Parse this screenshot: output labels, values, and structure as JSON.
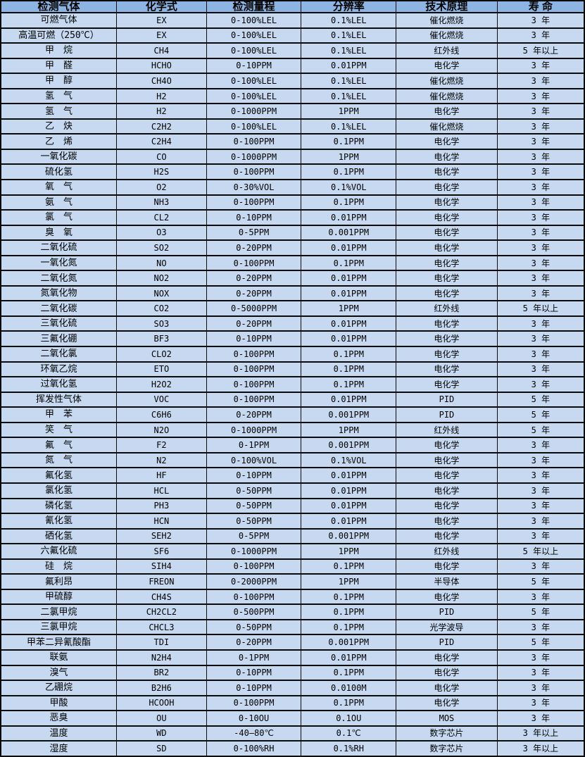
{
  "table": {
    "title": "gas detector sensor specification table",
    "columns": [
      "检测气体",
      "化学式",
      "检测量程",
      "分辨率",
      "技术原理",
      "寿 命"
    ],
    "rows": [
      [
        "可燃气体",
        "EX",
        "0-100%LEL",
        "0.1%LEL",
        "催化燃烧",
        "3 年"
      ],
      [
        "高温可燃（250℃）",
        "EX",
        "0-100%LEL",
        "0.1%LEL",
        "催化燃烧",
        "3 年"
      ],
      [
        "甲　烷",
        "CH4",
        "0-100%LEL",
        "0.1%LEL",
        "红外线",
        "5 年以上"
      ],
      [
        "甲　醛",
        "HCHO",
        "0-10PPM",
        "0.01PPM",
        "电化学",
        "3 年"
      ],
      [
        "甲　醇",
        "CH4O",
        "0-100%LEL",
        "0.1%LEL",
        "催化燃烧",
        "3 年"
      ],
      [
        "氢　气",
        "H2",
        "0-100%LEL",
        "0.1%LEL",
        "催化燃烧",
        "3 年"
      ],
      [
        "氢　气",
        "H2",
        "0-1000PPM",
        "1PPM",
        "电化学",
        "3 年"
      ],
      [
        "乙　炔",
        "C2H2",
        "0-100%LEL",
        "0.1%LEL",
        "催化燃烧",
        "3 年"
      ],
      [
        "乙　烯",
        "C2H4",
        "0-100PPM",
        "0.1PPM",
        "电化学",
        "3 年"
      ],
      [
        "一氧化碳",
        "CO",
        "0-1000PPM",
        "1PPM",
        "电化学",
        "3 年"
      ],
      [
        "硫化氢",
        "H2S",
        "0-100PPM",
        "0.1PPM",
        "电化学",
        "3 年"
      ],
      [
        "氧　气",
        "O2",
        "0-30%VOL",
        "0.1%VOL",
        "电化学",
        "3 年"
      ],
      [
        "氨　气",
        "NH3",
        "0-100PPM",
        "0.1PPM",
        "电化学",
        "3 年"
      ],
      [
        "氯　气",
        "CL2",
        "0-10PPM",
        "0.01PPM",
        "电化学",
        "3 年"
      ],
      [
        "臭　氧",
        "O3",
        "0-5PPM",
        "0.001PPM",
        "电化学",
        "3 年"
      ],
      [
        "二氧化硫",
        "SO2",
        "0-20PPM",
        "0.01PPM",
        "电化学",
        "3 年"
      ],
      [
        "一氧化氮",
        "NO",
        "0-100PPM",
        "0.1PPM",
        "电化学",
        "3 年"
      ],
      [
        "二氧化氮",
        "NO2",
        "0-20PPM",
        "0.01PPM",
        "电化学",
        "3 年"
      ],
      [
        "氮氧化物",
        "NOX",
        "0-20PPM",
        "0.01PPM",
        "电化学",
        "3 年"
      ],
      [
        "二氧化碳",
        "CO2",
        "0-5000PPM",
        "1PPM",
        "红外线",
        "5 年以上"
      ],
      [
        "三氧化硫",
        "SO3",
        "0-20PPM",
        "0.01PPM",
        "电化学",
        "3 年"
      ],
      [
        "三氟化硼",
        "BF3",
        "0-10PPM",
        "0.01PPM",
        "电化学",
        "3 年"
      ],
      [
        "二氧化氯",
        "CLO2",
        "0-100PPM",
        "0.1PPM",
        "电化学",
        "3 年"
      ],
      [
        "环氧乙烷",
        "ETO",
        "0-100PPM",
        "0.1PPM",
        "电化学",
        "3 年"
      ],
      [
        "过氧化氢",
        "H2O2",
        "0-100PPM",
        "0.1PPM",
        "电化学",
        "3 年"
      ],
      [
        "挥发性气体",
        "VOC",
        "0-100PPM",
        "0.01PPM",
        "PID",
        "5 年"
      ],
      [
        "甲　苯",
        "C6H6",
        "0-20PPM",
        "0.001PPM",
        "PID",
        "5 年"
      ],
      [
        "笑　气",
        "N2O",
        "0-1000PPM",
        "1PPM",
        "红外线",
        "5 年"
      ],
      [
        "氟　气",
        "F2",
        "0-1PPM",
        "0.001PPM",
        "电化学",
        "3 年"
      ],
      [
        "氮　气",
        "N2",
        "0-100%VOL",
        "0.1%VOL",
        "电化学",
        "3 年"
      ],
      [
        "氟化氢",
        "HF",
        "0-10PPM",
        "0.01PPM",
        "电化学",
        "3 年"
      ],
      [
        "氯化氢",
        "HCL",
        "0-50PPM",
        "0.01PPM",
        "电化学",
        "3 年"
      ],
      [
        "磷化氢",
        "PH3",
        "0-50PPM",
        "0.01PPM",
        "电化学",
        "3 年"
      ],
      [
        "氰化氢",
        "HCN",
        "0-50PPM",
        "0.01PPM",
        "电化学",
        "3 年"
      ],
      [
        "硒化氢",
        "SEH2",
        "0-5PPM",
        "0.001PPM",
        "电化学",
        "3 年"
      ],
      [
        "六氟化硫",
        "SF6",
        "0-1000PPM",
        "1PPM",
        "红外线",
        "5 年以上"
      ],
      [
        "硅　烷",
        "SIH4",
        "0-100PPM",
        "0.1PPM",
        "电化学",
        "3 年"
      ],
      [
        "氟利昂",
        "FREON",
        "0-2000PPM",
        "1PPM",
        "半导体",
        "5 年"
      ],
      [
        "甲硫醇",
        "CH4S",
        "0-100PPM",
        "0.1PPM",
        "电化学",
        "3 年"
      ],
      [
        "二氯甲烷",
        "CH2CL2",
        "0-500PPM",
        "0.1PPM",
        "PID",
        "5 年"
      ],
      [
        "三氯甲烷",
        "CHCL3",
        "0-50PPM",
        "0.1PPM",
        "光学波导",
        "3 年"
      ],
      [
        "甲苯二异氰酸酯",
        "TDI",
        "0-20PPM",
        "0.001PPM",
        "PID",
        "5 年"
      ],
      [
        "联氨",
        "N2H4",
        "0-1PPM",
        "0.01PPM",
        "电化学",
        "3 年"
      ],
      [
        "溴气",
        "BR2",
        "0-10PPM",
        "0.1PPM",
        "电化学",
        "3 年"
      ],
      [
        "乙硼烷",
        "B2H6",
        "0-10PPM",
        "0.0100M",
        "电化学",
        "3 年"
      ],
      [
        "甲酸",
        "HCOOH",
        "0-100PPM",
        "0.1PPM",
        "电化学",
        "3 年"
      ],
      [
        "恶臭",
        "OU",
        "0-10OU",
        "0.1OU",
        "MOS",
        "3 年"
      ],
      [
        "温度",
        "WD",
        "-40—80℃",
        "0.1℃",
        "数字芯片",
        "3 年以上"
      ],
      [
        "湿度",
        "SD",
        "0-100%RH",
        "0.1%RH",
        "数字芯片",
        "3 年以上"
      ]
    ]
  },
  "colors": {
    "header_bg": "#8db4e2",
    "row_bg": "#c7d9f1",
    "grid": "#0b0b0b",
    "text": "#000000"
  }
}
